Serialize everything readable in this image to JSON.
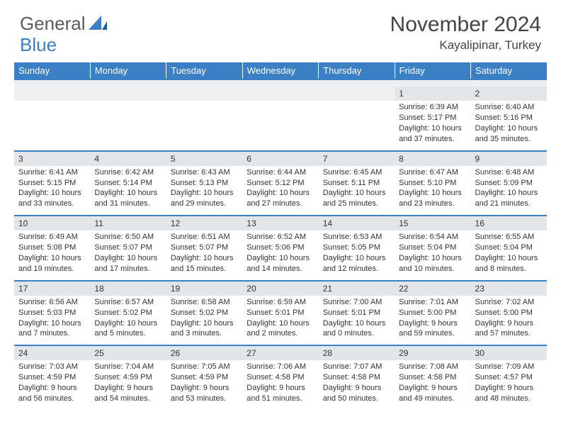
{
  "brand": {
    "part1": "General",
    "part2": "Blue"
  },
  "title": "November 2024",
  "location": "Kayalipinar, Turkey",
  "colors": {
    "header_bg": "#3b7fc4",
    "daynum_bg": "#e3e6e9",
    "rule": "#3b7fc4",
    "text": "#333333",
    "logo_gray": "#5a5a5a",
    "logo_blue": "#3b7fc4"
  },
  "weekdays": [
    "Sunday",
    "Monday",
    "Tuesday",
    "Wednesday",
    "Thursday",
    "Friday",
    "Saturday"
  ],
  "weeks": [
    [
      {
        "n": "",
        "empty": true
      },
      {
        "n": "",
        "empty": true
      },
      {
        "n": "",
        "empty": true
      },
      {
        "n": "",
        "empty": true
      },
      {
        "n": "",
        "empty": true
      },
      {
        "n": "1",
        "sunrise": "Sunrise: 6:39 AM",
        "sunset": "Sunset: 5:17 PM",
        "daylight": "Daylight: 10 hours and 37 minutes."
      },
      {
        "n": "2",
        "sunrise": "Sunrise: 6:40 AM",
        "sunset": "Sunset: 5:16 PM",
        "daylight": "Daylight: 10 hours and 35 minutes."
      }
    ],
    [
      {
        "n": "3",
        "sunrise": "Sunrise: 6:41 AM",
        "sunset": "Sunset: 5:15 PM",
        "daylight": "Daylight: 10 hours and 33 minutes."
      },
      {
        "n": "4",
        "sunrise": "Sunrise: 6:42 AM",
        "sunset": "Sunset: 5:14 PM",
        "daylight": "Daylight: 10 hours and 31 minutes."
      },
      {
        "n": "5",
        "sunrise": "Sunrise: 6:43 AM",
        "sunset": "Sunset: 5:13 PM",
        "daylight": "Daylight: 10 hours and 29 minutes."
      },
      {
        "n": "6",
        "sunrise": "Sunrise: 6:44 AM",
        "sunset": "Sunset: 5:12 PM",
        "daylight": "Daylight: 10 hours and 27 minutes."
      },
      {
        "n": "7",
        "sunrise": "Sunrise: 6:45 AM",
        "sunset": "Sunset: 5:11 PM",
        "daylight": "Daylight: 10 hours and 25 minutes."
      },
      {
        "n": "8",
        "sunrise": "Sunrise: 6:47 AM",
        "sunset": "Sunset: 5:10 PM",
        "daylight": "Daylight: 10 hours and 23 minutes."
      },
      {
        "n": "9",
        "sunrise": "Sunrise: 6:48 AM",
        "sunset": "Sunset: 5:09 PM",
        "daylight": "Daylight: 10 hours and 21 minutes."
      }
    ],
    [
      {
        "n": "10",
        "sunrise": "Sunrise: 6:49 AM",
        "sunset": "Sunset: 5:08 PM",
        "daylight": "Daylight: 10 hours and 19 minutes."
      },
      {
        "n": "11",
        "sunrise": "Sunrise: 6:50 AM",
        "sunset": "Sunset: 5:07 PM",
        "daylight": "Daylight: 10 hours and 17 minutes."
      },
      {
        "n": "12",
        "sunrise": "Sunrise: 6:51 AM",
        "sunset": "Sunset: 5:07 PM",
        "daylight": "Daylight: 10 hours and 15 minutes."
      },
      {
        "n": "13",
        "sunrise": "Sunrise: 6:52 AM",
        "sunset": "Sunset: 5:06 PM",
        "daylight": "Daylight: 10 hours and 14 minutes."
      },
      {
        "n": "14",
        "sunrise": "Sunrise: 6:53 AM",
        "sunset": "Sunset: 5:05 PM",
        "daylight": "Daylight: 10 hours and 12 minutes."
      },
      {
        "n": "15",
        "sunrise": "Sunrise: 6:54 AM",
        "sunset": "Sunset: 5:04 PM",
        "daylight": "Daylight: 10 hours and 10 minutes."
      },
      {
        "n": "16",
        "sunrise": "Sunrise: 6:55 AM",
        "sunset": "Sunset: 5:04 PM",
        "daylight": "Daylight: 10 hours and 8 minutes."
      }
    ],
    [
      {
        "n": "17",
        "sunrise": "Sunrise: 6:56 AM",
        "sunset": "Sunset: 5:03 PM",
        "daylight": "Daylight: 10 hours and 7 minutes."
      },
      {
        "n": "18",
        "sunrise": "Sunrise: 6:57 AM",
        "sunset": "Sunset: 5:02 PM",
        "daylight": "Daylight: 10 hours and 5 minutes."
      },
      {
        "n": "19",
        "sunrise": "Sunrise: 6:58 AM",
        "sunset": "Sunset: 5:02 PM",
        "daylight": "Daylight: 10 hours and 3 minutes."
      },
      {
        "n": "20",
        "sunrise": "Sunrise: 6:59 AM",
        "sunset": "Sunset: 5:01 PM",
        "daylight": "Daylight: 10 hours and 2 minutes."
      },
      {
        "n": "21",
        "sunrise": "Sunrise: 7:00 AM",
        "sunset": "Sunset: 5:01 PM",
        "daylight": "Daylight: 10 hours and 0 minutes."
      },
      {
        "n": "22",
        "sunrise": "Sunrise: 7:01 AM",
        "sunset": "Sunset: 5:00 PM",
        "daylight": "Daylight: 9 hours and 59 minutes."
      },
      {
        "n": "23",
        "sunrise": "Sunrise: 7:02 AM",
        "sunset": "Sunset: 5:00 PM",
        "daylight": "Daylight: 9 hours and 57 minutes."
      }
    ],
    [
      {
        "n": "24",
        "sunrise": "Sunrise: 7:03 AM",
        "sunset": "Sunset: 4:59 PM",
        "daylight": "Daylight: 9 hours and 56 minutes."
      },
      {
        "n": "25",
        "sunrise": "Sunrise: 7:04 AM",
        "sunset": "Sunset: 4:59 PM",
        "daylight": "Daylight: 9 hours and 54 minutes."
      },
      {
        "n": "26",
        "sunrise": "Sunrise: 7:05 AM",
        "sunset": "Sunset: 4:59 PM",
        "daylight": "Daylight: 9 hours and 53 minutes."
      },
      {
        "n": "27",
        "sunrise": "Sunrise: 7:06 AM",
        "sunset": "Sunset: 4:58 PM",
        "daylight": "Daylight: 9 hours and 51 minutes."
      },
      {
        "n": "28",
        "sunrise": "Sunrise: 7:07 AM",
        "sunset": "Sunset: 4:58 PM",
        "daylight": "Daylight: 9 hours and 50 minutes."
      },
      {
        "n": "29",
        "sunrise": "Sunrise: 7:08 AM",
        "sunset": "Sunset: 4:58 PM",
        "daylight": "Daylight: 9 hours and 49 minutes."
      },
      {
        "n": "30",
        "sunrise": "Sunrise: 7:09 AM",
        "sunset": "Sunset: 4:57 PM",
        "daylight": "Daylight: 9 hours and 48 minutes."
      }
    ]
  ]
}
